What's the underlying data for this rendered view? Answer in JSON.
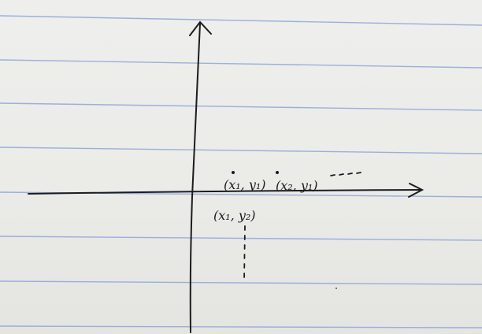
{
  "colors": {
    "paper": "#ebebe8",
    "ruled_line": "#8ea6d6",
    "ink": "#1c1c1c"
  },
  "labels": {
    "point_1": "(x₁, y₁)",
    "point_2": "(x₂, y₁)",
    "point_3": "(x₁, y₂)"
  }
}
